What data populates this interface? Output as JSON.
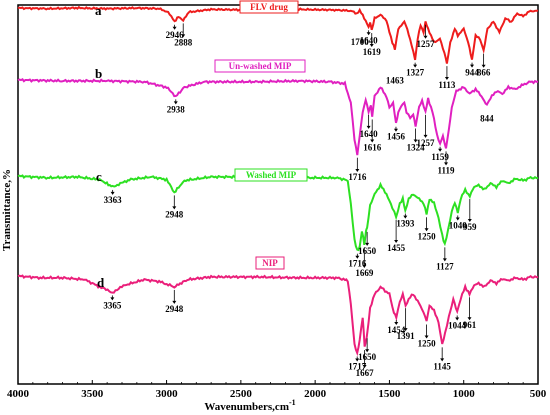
{
  "chart_data": {
    "type": "line",
    "xlabel": "Wavenumbers,cm",
    "xlabel_superscript": "-1",
    "ylabel": "Transmittance,%",
    "xlim": [
      4000,
      500
    ],
    "x_reversed": true,
    "x_ticks": [
      4000,
      3500,
      3000,
      2500,
      2000,
      1500,
      1000,
      500
    ],
    "x_tick_labels": [
      "4000",
      "3500",
      "3000",
      "2500",
      "2000",
      "1500",
      "1000",
      "500"
    ],
    "series": [
      {
        "panel": "a",
        "name": "FLV drug",
        "color": "#ee1c1c",
        "baseline_pct": 10,
        "points": [
          [
            4000,
            10
          ],
          [
            3800,
            11
          ],
          [
            3600,
            10
          ],
          [
            3400,
            11
          ],
          [
            3200,
            10
          ],
          [
            3050,
            11
          ],
          [
            2990,
            16
          ],
          [
            2946,
            30
          ],
          [
            2920,
            22
          ],
          [
            2888,
            28
          ],
          [
            2850,
            16
          ],
          [
            2700,
            12
          ],
          [
            2400,
            13
          ],
          [
            2100,
            12
          ],
          [
            1850,
            13
          ],
          [
            1760,
            14
          ],
          [
            1720,
            18
          ],
          [
            1700,
            14
          ],
          [
            1680,
            20
          ],
          [
            1640,
            38
          ],
          [
            1630,
            30
          ],
          [
            1619,
            42
          ],
          [
            1600,
            25
          ],
          [
            1560,
            20
          ],
          [
            1520,
            28
          ],
          [
            1500,
            45
          ],
          [
            1480,
            60
          ],
          [
            1463,
            70
          ],
          [
            1440,
            40
          ],
          [
            1400,
            30
          ],
          [
            1380,
            40
          ],
          [
            1350,
            65
          ],
          [
            1327,
            85
          ],
          [
            1310,
            55
          ],
          [
            1290,
            35
          ],
          [
            1270,
            45
          ],
          [
            1257,
            30
          ],
          [
            1240,
            40
          ],
          [
            1200,
            60
          ],
          [
            1160,
            55
          ],
          [
            1130,
            75
          ],
          [
            1113,
            90
          ],
          [
            1090,
            60
          ],
          [
            1060,
            40
          ],
          [
            1040,
            50
          ],
          [
            1000,
            40
          ],
          [
            970,
            60
          ],
          [
            944,
            85
          ],
          [
            920,
            50
          ],
          [
            890,
            55
          ],
          [
            866,
            72
          ],
          [
            840,
            40
          ],
          [
            800,
            30
          ],
          [
            760,
            45
          ],
          [
            720,
            25
          ],
          [
            680,
            30
          ],
          [
            640,
            18
          ],
          [
            600,
            22
          ],
          [
            560,
            15
          ],
          [
            520,
            14
          ],
          [
            500,
            14
          ]
        ]
      },
      {
        "panel": "b",
        "name": "Un-washed MIP",
        "color": "#e020c0",
        "baseline_pct": 10,
        "points": [
          [
            4000,
            10
          ],
          [
            3700,
            11
          ],
          [
            3400,
            11
          ],
          [
            3150,
            12
          ],
          [
            3000,
            18
          ],
          [
            2938,
            28
          ],
          [
            2880,
            18
          ],
          [
            2750,
            12
          ],
          [
            2400,
            12
          ],
          [
            2100,
            11
          ],
          [
            1900,
            12
          ],
          [
            1800,
            14
          ],
          [
            1760,
            35
          ],
          [
            1735,
            75
          ],
          [
            1716,
            92
          ],
          [
            1700,
            72
          ],
          [
            1680,
            45
          ],
          [
            1660,
            32
          ],
          [
            1640,
            45
          ],
          [
            1625,
            38
          ],
          [
            1616,
            50
          ],
          [
            1600,
            28
          ],
          [
            1560,
            18
          ],
          [
            1520,
            28
          ],
          [
            1500,
            40
          ],
          [
            1475,
            35
          ],
          [
            1456,
            58
          ],
          [
            1440,
            45
          ],
          [
            1420,
            38
          ],
          [
            1400,
            35
          ],
          [
            1385,
            45
          ],
          [
            1360,
            52
          ],
          [
            1340,
            48
          ],
          [
            1324,
            60
          ],
          [
            1300,
            40
          ],
          [
            1280,
            32
          ],
          [
            1257,
            45
          ],
          [
            1240,
            30
          ],
          [
            1210,
            45
          ],
          [
            1180,
            70
          ],
          [
            1159,
            80
          ],
          [
            1140,
            72
          ],
          [
            1119,
            85
          ],
          [
            1100,
            65
          ],
          [
            1080,
            40
          ],
          [
            1050,
            22
          ],
          [
            1000,
            18
          ],
          [
            960,
            25
          ],
          [
            920,
            20
          ],
          [
            880,
            28
          ],
          [
            844,
            38
          ],
          [
            820,
            30
          ],
          [
            780,
            22
          ],
          [
            740,
            25
          ],
          [
            700,
            18
          ],
          [
            650,
            20
          ],
          [
            600,
            15
          ],
          [
            550,
            12
          ],
          [
            500,
            12
          ]
        ]
      },
      {
        "panel": "c",
        "name": "Washed MIP",
        "color": "#2de022",
        "baseline_pct": 10,
        "points": [
          [
            4000,
            10
          ],
          [
            3800,
            12
          ],
          [
            3600,
            11
          ],
          [
            3450,
            14
          ],
          [
            3363,
            22
          ],
          [
            3250,
            14
          ],
          [
            3100,
            11
          ],
          [
            3000,
            14
          ],
          [
            2948,
            28
          ],
          [
            2880,
            15
          ],
          [
            2700,
            11
          ],
          [
            2400,
            11
          ],
          [
            2100,
            12
          ],
          [
            1850,
            12
          ],
          [
            1780,
            15
          ],
          [
            1760,
            40
          ],
          [
            1735,
            80
          ],
          [
            1716,
            92
          ],
          [
            1700,
            88
          ],
          [
            1685,
            70
          ],
          [
            1669,
            85
          ],
          [
            1658,
            70
          ],
          [
            1650,
            68
          ],
          [
            1630,
            42
          ],
          [
            1600,
            30
          ],
          [
            1560,
            20
          ],
          [
            1520,
            30
          ],
          [
            1480,
            45
          ],
          [
            1455,
            55
          ],
          [
            1430,
            40
          ],
          [
            1410,
            35
          ],
          [
            1393,
            48
          ],
          [
            1370,
            35
          ],
          [
            1340,
            30
          ],
          [
            1300,
            35
          ],
          [
            1270,
            40
          ],
          [
            1250,
            52
          ],
          [
            1230,
            35
          ],
          [
            1200,
            40
          ],
          [
            1170,
            55
          ],
          [
            1145,
            75
          ],
          [
            1127,
            85
          ],
          [
            1105,
            70
          ],
          [
            1080,
            48
          ],
          [
            1060,
            40
          ],
          [
            1040,
            50
          ],
          [
            1020,
            35
          ],
          [
            990,
            25
          ],
          [
            959,
            32
          ],
          [
            930,
            22
          ],
          [
            900,
            20
          ],
          [
            860,
            25
          ],
          [
            820,
            18
          ],
          [
            780,
            22
          ],
          [
            740,
            15
          ],
          [
            700,
            18
          ],
          [
            650,
            13
          ],
          [
            600,
            15
          ],
          [
            550,
            12
          ],
          [
            500,
            12
          ]
        ]
      },
      {
        "panel": "d",
        "name": "NIP",
        "color": "#ea1f7a",
        "baseline_pct": 10,
        "points": [
          [
            4000,
            10
          ],
          [
            3850,
            12
          ],
          [
            3700,
            12
          ],
          [
            3550,
            14
          ],
          [
            3450,
            22
          ],
          [
            3365,
            28
          ],
          [
            3280,
            20
          ],
          [
            3150,
            14
          ],
          [
            3050,
            16
          ],
          [
            2948,
            22
          ],
          [
            2860,
            14
          ],
          [
            2700,
            11
          ],
          [
            2400,
            11
          ],
          [
            2100,
            12
          ],
          [
            1850,
            12
          ],
          [
            1780,
            15
          ],
          [
            1760,
            40
          ],
          [
            1735,
            85
          ],
          [
            1717,
            95
          ],
          [
            1700,
            80
          ],
          [
            1680,
            55
          ],
          [
            1667,
            88
          ],
          [
            1656,
            80
          ],
          [
            1650,
            75
          ],
          [
            1630,
            45
          ],
          [
            1600,
            30
          ],
          [
            1560,
            22
          ],
          [
            1500,
            30
          ],
          [
            1470,
            50
          ],
          [
            1454,
            55
          ],
          [
            1430,
            38
          ],
          [
            1410,
            30
          ],
          [
            1391,
            42
          ],
          [
            1370,
            35
          ],
          [
            1340,
            30
          ],
          [
            1300,
            40
          ],
          [
            1270,
            50
          ],
          [
            1250,
            60
          ],
          [
            1230,
            42
          ],
          [
            1200,
            48
          ],
          [
            1170,
            60
          ],
          [
            1145,
            85
          ],
          [
            1125,
            72
          ],
          [
            1100,
            55
          ],
          [
            1070,
            35
          ],
          [
            1044,
            50
          ],
          [
            1020,
            35
          ],
          [
            990,
            22
          ],
          [
            961,
            30
          ],
          [
            930,
            20
          ],
          [
            900,
            18
          ],
          [
            860,
            22
          ],
          [
            820,
            15
          ],
          [
            780,
            18
          ],
          [
            740,
            13
          ],
          [
            700,
            15
          ],
          [
            650,
            12
          ],
          [
            600,
            14
          ],
          [
            550,
            11
          ],
          [
            500,
            11
          ]
        ]
      }
    ],
    "annotations": [
      {
        "panel": "a",
        "text": "2946",
        "x": 2946,
        "arrow": true
      },
      {
        "panel": "a",
        "text": "2888",
        "x": 2888,
        "arrow": true
      },
      {
        "panel": "a",
        "text": "1700",
        "x": 1700,
        "arrow": false
      },
      {
        "panel": "a",
        "text": "1640",
        "x": 1640,
        "arrow": true
      },
      {
        "panel": "a",
        "text": "1619",
        "x": 1619,
        "arrow": true
      },
      {
        "panel": "a",
        "text": "1463",
        "x": 1463,
        "arrow": false
      },
      {
        "panel": "a",
        "text": "1327",
        "x": 1327,
        "arrow": true
      },
      {
        "panel": "a",
        "text": "1257",
        "x": 1257,
        "arrow": true
      },
      {
        "panel": "a",
        "text": "1113",
        "x": 1113,
        "arrow": true
      },
      {
        "panel": "a",
        "text": "944",
        "x": 944,
        "arrow": true
      },
      {
        "panel": "a",
        "text": "866",
        "x": 866,
        "arrow": true
      },
      {
        "panel": "b",
        "text": "2938",
        "x": 2938,
        "arrow": true
      },
      {
        "panel": "b",
        "text": "1640",
        "x": 1640,
        "arrow": true
      },
      {
        "panel": "b",
        "text": "1616",
        "x": 1616,
        "arrow": true
      },
      {
        "panel": "b",
        "text": "1456",
        "x": 1456,
        "arrow": true
      },
      {
        "panel": "b",
        "text": "1324",
        "x": 1324,
        "arrow": true
      },
      {
        "panel": "b",
        "text": "1257",
        "x": 1257,
        "arrow": true
      },
      {
        "panel": "b",
        "text": "1159",
        "x": 1159,
        "arrow": true
      },
      {
        "panel": "b",
        "text": "1119",
        "x": 1119,
        "arrow": true
      },
      {
        "panel": "b",
        "text": "1716",
        "x": 1716,
        "arrow": true
      },
      {
        "panel": "b",
        "text": "844",
        "x": 844,
        "arrow": false
      },
      {
        "panel": "c",
        "text": "3363",
        "x": 3363,
        "arrow": true
      },
      {
        "panel": "c",
        "text": "2948",
        "x": 2948,
        "arrow": true
      },
      {
        "panel": "c",
        "text": "1455",
        "x": 1455,
        "arrow": true
      },
      {
        "panel": "c",
        "text": "1393",
        "x": 1393,
        "arrow": true
      },
      {
        "panel": "c",
        "text": "1250",
        "x": 1250,
        "arrow": true
      },
      {
        "panel": "c",
        "text": "959",
        "x": 959,
        "arrow": true
      },
      {
        "panel": "c",
        "text": "1040",
        "x": 1040,
        "arrow": true
      },
      {
        "panel": "c",
        "text": "1650",
        "x": 1650,
        "arrow": true
      },
      {
        "panel": "c",
        "text": "1669",
        "x": 1669,
        "arrow": true
      },
      {
        "panel": "c",
        "text": "1716",
        "x": 1716,
        "arrow": true
      },
      {
        "panel": "c",
        "text": "1127",
        "x": 1127,
        "arrow": true
      },
      {
        "panel": "d",
        "text": "3365",
        "x": 3365,
        "arrow": true
      },
      {
        "panel": "d",
        "text": "2948",
        "x": 2948,
        "arrow": true
      },
      {
        "panel": "d",
        "text": "1391",
        "x": 1391,
        "arrow": true
      },
      {
        "panel": "d",
        "text": "1454",
        "x": 1454,
        "arrow": true
      },
      {
        "panel": "d",
        "text": "1250",
        "x": 1250,
        "arrow": true
      },
      {
        "panel": "d",
        "text": "961",
        "x": 961,
        "arrow": true
      },
      {
        "panel": "d",
        "text": "1044",
        "x": 1044,
        "arrow": true
      },
      {
        "panel": "d",
        "text": "1650",
        "x": 1650,
        "arrow": true
      },
      {
        "panel": "d",
        "text": "1667",
        "x": 1667,
        "arrow": true
      },
      {
        "panel": "d",
        "text": "1717",
        "x": 1717,
        "arrow": true
      },
      {
        "panel": "d",
        "text": "1145",
        "x": 1145,
        "arrow": true
      }
    ],
    "grid": false
  }
}
